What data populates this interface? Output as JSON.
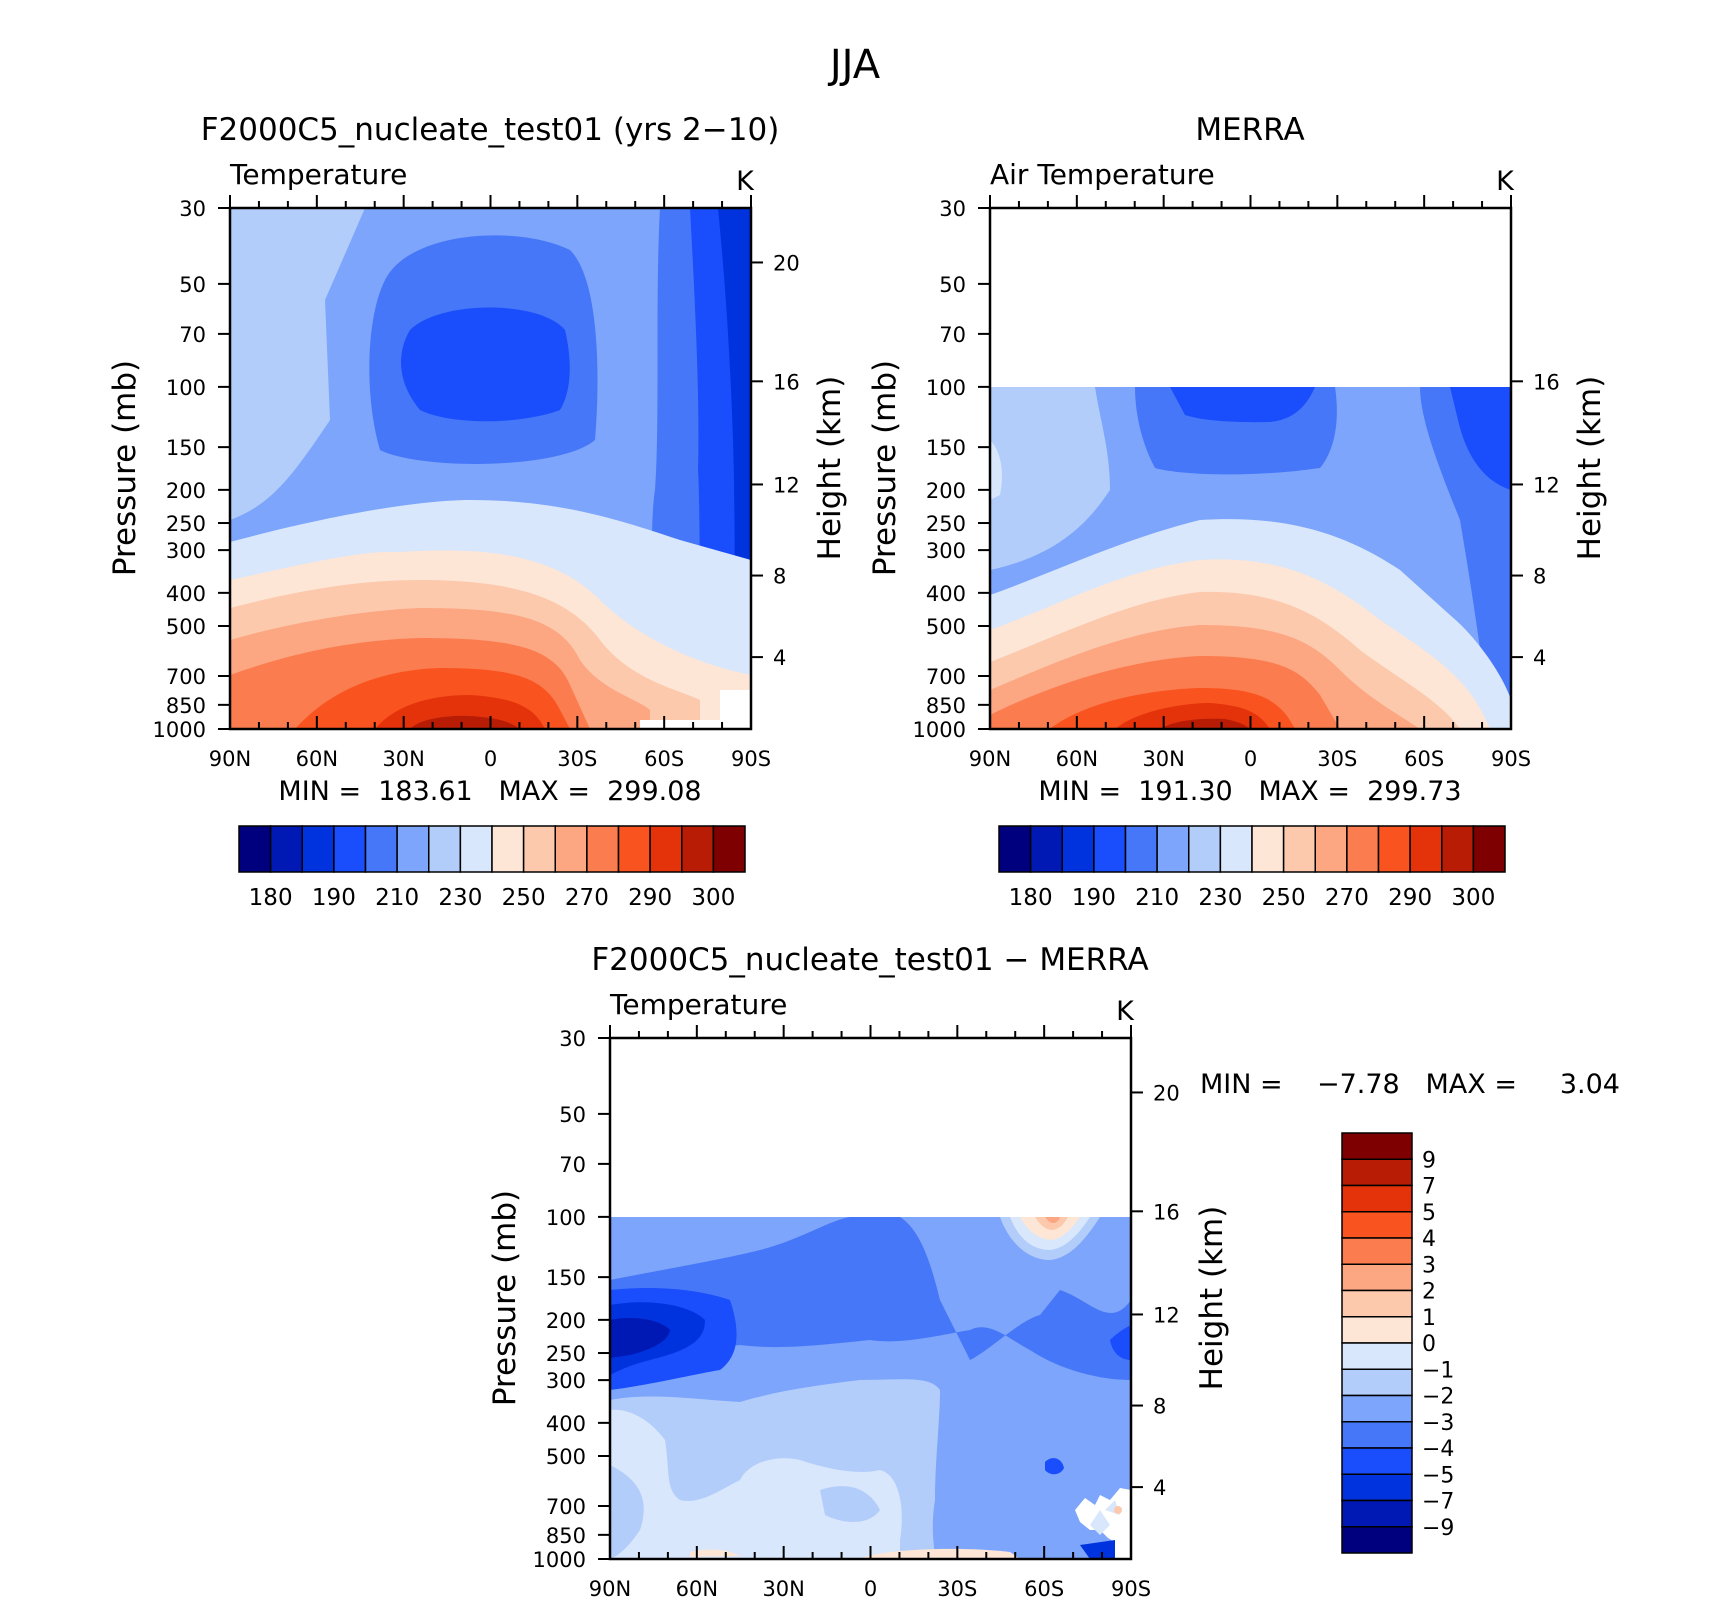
{
  "figure_title": "JJA",
  "chart_data": [
    {
      "type": "heatmap",
      "title": "F2000C5_nucleate_test01 (yrs 2−10)",
      "subtitle": "Temperature",
      "units": "K",
      "xlabel": "",
      "ylabel": "Pressure (mb)",
      "ylabel_right": "Height (km)",
      "x_ticks": [
        "90N",
        "60N",
        "30N",
        "0",
        "30S",
        "60S",
        "90S"
      ],
      "y_ticks": [
        "30",
        "50",
        "70",
        "100",
        "150",
        "200",
        "250",
        "300",
        "400",
        "500",
        "700",
        "850",
        "1000"
      ],
      "y_ticks_right": [
        "4",
        "8",
        "12",
        "16",
        "20"
      ],
      "ylim": [
        1000,
        30
      ],
      "y_scale": "log",
      "stats_text": "MIN =  183.61   MAX =  299.08",
      "colorbar_labels": [
        "180",
        "190",
        "210",
        "230",
        "250",
        "270",
        "290",
        "300"
      ],
      "colorbar_orientation": "horizontal",
      "data_top_pressure": 30
    },
    {
      "type": "heatmap",
      "title": "MERRA",
      "subtitle": "Air Temperature",
      "units": "K",
      "xlabel": "",
      "ylabel": "Pressure (mb)",
      "ylabel_right": "Height (km)",
      "x_ticks": [
        "90N",
        "60N",
        "30N",
        "0",
        "30S",
        "60S",
        "90S"
      ],
      "y_ticks": [
        "30",
        "50",
        "70",
        "100",
        "150",
        "200",
        "250",
        "300",
        "400",
        "500",
        "700",
        "850",
        "1000"
      ],
      "y_ticks_right": [
        "4",
        "8",
        "12",
        "16"
      ],
      "ylim": [
        1000,
        30
      ],
      "y_scale": "log",
      "stats_text": "MIN =  191.30   MAX =  299.73",
      "colorbar_labels": [
        "180",
        "190",
        "210",
        "230",
        "250",
        "270",
        "290",
        "300"
      ],
      "colorbar_orientation": "horizontal",
      "data_top_pressure": 100
    },
    {
      "type": "heatmap",
      "title": "F2000C5_nucleate_test01 − MERRA",
      "subtitle": "Temperature",
      "units": "K",
      "xlabel": "",
      "ylabel": "Pressure (mb)",
      "ylabel_right": "Height (km)",
      "x_ticks": [
        "90N",
        "60N",
        "30N",
        "0",
        "30S",
        "60S",
        "90S"
      ],
      "y_ticks": [
        "30",
        "50",
        "70",
        "100",
        "150",
        "200",
        "250",
        "300",
        "400",
        "500",
        "700",
        "850",
        "1000"
      ],
      "y_ticks_right": [
        "4",
        "8",
        "12",
        "16",
        "20"
      ],
      "ylim": [
        1000,
        30
      ],
      "y_scale": "log",
      "stats_text": "MIN =    −7.78   MAX =     3.04",
      "colorbar_labels": [
        "9",
        "7",
        "5",
        "4",
        "3",
        "2",
        "1",
        "0",
        "−1",
        "−2",
        "−3",
        "−4",
        "−5",
        "−7",
        "−9"
      ],
      "colorbar_orientation": "vertical",
      "data_top_pressure": 100
    }
  ],
  "colors": {
    "levels16": [
      "#00007f",
      "#0019b4",
      "#0033dd",
      "#1a4dfb",
      "#4677f8",
      "#7da5fb",
      "#b3cdfb",
      "#d8e7fc",
      "#fde6d6",
      "#fcc9ad",
      "#fca682",
      "#fb7c4e",
      "#f9531f",
      "#e4330b",
      "#b81c05",
      "#7f0000"
    ]
  }
}
